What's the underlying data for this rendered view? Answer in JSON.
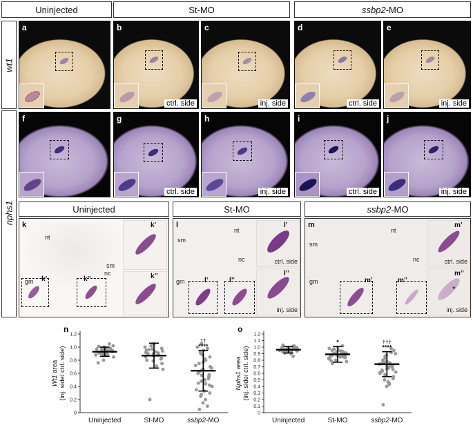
{
  "top_headers": {
    "uninjected": "Uninjected",
    "st_mo": "St-MO",
    "ssbp2_mo_gene": "ssbp2",
    "ssbp2_mo_suffix": "-MO"
  },
  "row_labels": {
    "wt1": "wt1",
    "nphs1": "nphs1"
  },
  "panels_row1": [
    {
      "letter": "a",
      "side": ""
    },
    {
      "letter": "b",
      "side": "ctrl. side"
    },
    {
      "letter": "c",
      "side": "inj. side"
    },
    {
      "letter": "d",
      "side": "ctrl. side"
    },
    {
      "letter": "e",
      "side": "inj. side"
    }
  ],
  "panels_row2": [
    {
      "letter": "f",
      "side": ""
    },
    {
      "letter": "g",
      "side": "ctrl. side"
    },
    {
      "letter": "h",
      "side": "inj. side"
    },
    {
      "letter": "i",
      "side": "ctrl. side"
    },
    {
      "letter": "j",
      "side": "inj. side"
    }
  ],
  "section_headers": {
    "uninjected": "Uninjected",
    "st_mo": "St-MO",
    "ssbp2_gene": "ssbp2",
    "ssbp2_suffix": "-MO"
  },
  "sections": {
    "k": {
      "letter": "k",
      "nt": "nt",
      "sm": "sm",
      "nc": "nc",
      "gm": "gm",
      "box1": "k’",
      "box2": "k’’",
      "zoom1": "k’",
      "zoom2": "k’’"
    },
    "l": {
      "letter": "l",
      "nt": "nt",
      "sm": "sm",
      "nc": "nc",
      "gm": "gm",
      "box1": "l’",
      "box2": "l’’",
      "zoom1": "l’",
      "zoom2": "l’’",
      "zoom1_side": "ctrl. side",
      "zoom2_side": "inj. side"
    },
    "m": {
      "letter": "m",
      "nt": "nt",
      "sm": "sm",
      "nc": "nc",
      "gm": "gm",
      "box1": "m’",
      "box2": "m’’",
      "zoom1": "m’",
      "zoom2": "m’’",
      "zoom1_side": "ctrl. side",
      "zoom2_side": "inj. side",
      "asterisk": "*"
    }
  },
  "charts_labels": {
    "n": "n",
    "o": "o"
  },
  "chart_data": [
    {
      "type": "scatter",
      "panel": "n",
      "ylabel_gene": "Wt1",
      "ylabel_suffix": " area",
      "ylabel_line2": "(inj. side/ ctrl. side)",
      "ylim": [
        0,
        1.2
      ],
      "yticks": [
        "0",
        "0.2",
        "0.4",
        "0.6",
        "0.8",
        "1.0",
        "1.2"
      ],
      "categories": [
        "Uninjected",
        "St-MO",
        "ssbp2-MO"
      ],
      "category_labels": [
        {
          "plain": "Uninjected"
        },
        {
          "plain": "St-MO"
        },
        {
          "gene": "ssbp2",
          "suffix": "-MO"
        }
      ],
      "means": [
        0.93,
        0.87,
        0.64
      ],
      "sd": [
        0.07,
        0.19,
        0.31
      ],
      "annotations": [
        "",
        "",
        "****"
      ],
      "annotations2": [
        "",
        "",
        "††"
      ],
      "points": [
        [
          0.95,
          0.97,
          0.93,
          0.9,
          1.0,
          0.88,
          0.92,
          0.96,
          0.99,
          1.02,
          0.94,
          0.91,
          0.85,
          0.98,
          0.87,
          0.93,
          0.8,
          0.96,
          0.9,
          1.05,
          0.94,
          0.89,
          0.95,
          0.76,
          0.97,
          0.92,
          0.88,
          1.01
        ],
        [
          0.98,
          0.95,
          0.9,
          0.86,
          0.82,
          1.02,
          0.93,
          0.88,
          0.75,
          0.96,
          0.71,
          0.92,
          0.85,
          1.05,
          0.79,
          0.9,
          0.83,
          0.97,
          0.66,
          0.2,
          0.88,
          0.94,
          0.8,
          1.0,
          0.91
        ],
        [
          1.0,
          0.95,
          0.9,
          0.85,
          0.8,
          0.75,
          0.7,
          0.68,
          0.65,
          0.62,
          0.6,
          0.55,
          0.52,
          0.5,
          0.45,
          0.4,
          0.35,
          0.3,
          0.25,
          0.2,
          0.15,
          0.05,
          0.98,
          0.88,
          0.77,
          0.72,
          0.66,
          0.58,
          0.48,
          0.42,
          0.33,
          0.1,
          1.05,
          0.92,
          0.82,
          0.63,
          0.57,
          0.44,
          0.28
        ]
      ]
    },
    {
      "type": "scatter",
      "panel": "o",
      "ylabel_gene": "Nphs1",
      "ylabel_suffix": " area",
      "ylabel_line2": "(inj. side/ ctrl. side)",
      "ylim": [
        0,
        1.2
      ],
      "yticks": [
        "0",
        "0.1",
        "0.2",
        "0.3",
        "0.4",
        "0.5",
        "0.6",
        "0.7",
        "0.8",
        "0.9",
        "1.0",
        "1.1",
        "1.2"
      ],
      "categories": [
        "Uninjected",
        "St-MO",
        "ssbp2-MO"
      ],
      "category_labels": [
        {
          "plain": "Uninjected"
        },
        {
          "plain": "St-MO"
        },
        {
          "gene": "ssbp2",
          "suffix": "-MO"
        }
      ],
      "means": [
        0.96,
        0.89,
        0.74
      ],
      "sd": [
        0.05,
        0.12,
        0.19
      ],
      "annotations": [
        "",
        "*",
        "****"
      ],
      "annotations2": [
        "",
        "",
        "†††"
      ],
      "points": [
        [
          0.98,
          0.96,
          0.95,
          0.99,
          1.0,
          0.93,
          0.97,
          1.02,
          0.94,
          0.96,
          0.98,
          0.9,
          0.95,
          1.01,
          0.97,
          0.92,
          0.96,
          0.99,
          0.94,
          0.97,
          0.95,
          1.0,
          0.93,
          0.98,
          0.96,
          0.91,
          0.97,
          1.03,
          0.95,
          0.94,
          0.99,
          0.96,
          0.86,
          0.97,
          0.98,
          0.95
        ],
        [
          0.95,
          0.92,
          0.9,
          0.88,
          0.85,
          0.82,
          0.98,
          1.0,
          0.93,
          0.87,
          0.84,
          0.8,
          0.78,
          0.96,
          0.89,
          0.91,
          0.86,
          0.83,
          0.94,
          0.97,
          0.75,
          0.88,
          0.9,
          0.92,
          0.85,
          1.02,
          0.82,
          0.87,
          0.91,
          0.79,
          0.93,
          0.88,
          0.95
        ],
        [
          0.95,
          0.9,
          0.85,
          0.8,
          0.75,
          0.72,
          0.7,
          0.68,
          0.65,
          0.62,
          0.6,
          0.55,
          0.5,
          0.45,
          0.4,
          0.12,
          0.92,
          0.88,
          0.78,
          0.74,
          0.71,
          0.66,
          0.58,
          0.52,
          0.47,
          0.98,
          0.83,
          0.77,
          0.69,
          0.63,
          0.56,
          0.43,
          0.86,
          0.76,
          0.73,
          0.67,
          0.61
        ]
      ]
    }
  ]
}
